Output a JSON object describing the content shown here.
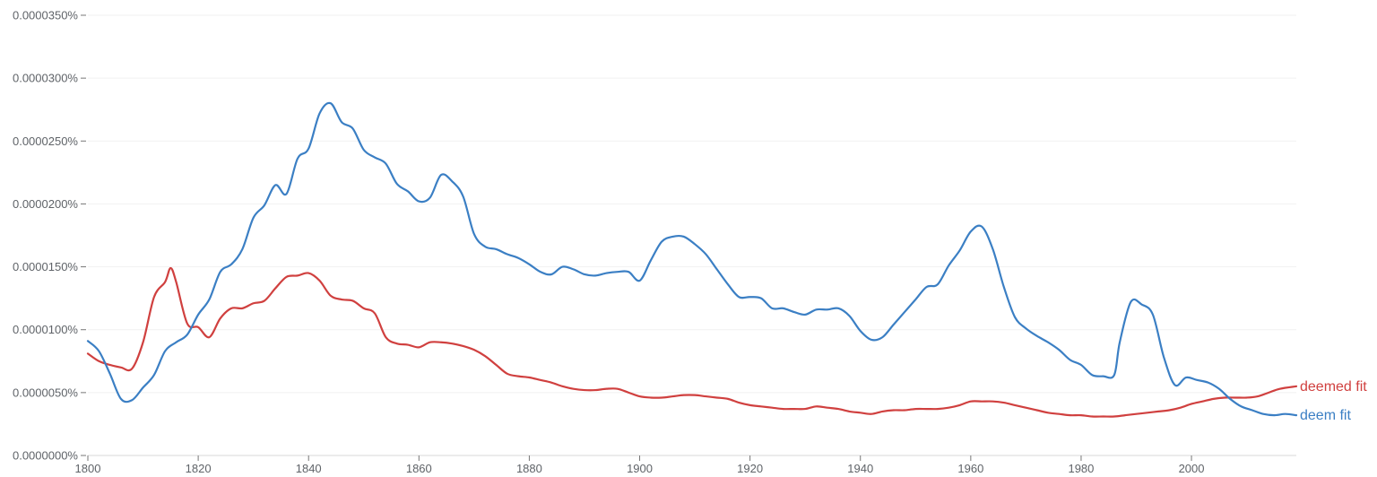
{
  "chart_data": {
    "type": "line",
    "title": "",
    "xlabel": "",
    "ylabel": "",
    "xlim": [
      1800,
      2019
    ],
    "ylim": [
      0,
      3.5e-05
    ],
    "grid": true,
    "legend": "inline-right",
    "x_ticks": [
      {
        "value": 1800,
        "label": "1800"
      },
      {
        "value": 1820,
        "label": "1820"
      },
      {
        "value": 1840,
        "label": "1840"
      },
      {
        "value": 1860,
        "label": "1860"
      },
      {
        "value": 1880,
        "label": "1880"
      },
      {
        "value": 1900,
        "label": "1900"
      },
      {
        "value": 1920,
        "label": "1920"
      },
      {
        "value": 1940,
        "label": "1940"
      },
      {
        "value": 1960,
        "label": "1960"
      },
      {
        "value": 1980,
        "label": "1980"
      },
      {
        "value": 2000,
        "label": "2000"
      }
    ],
    "y_ticks": [
      {
        "value": 0,
        "label": "0.0000000%"
      },
      {
        "value": 5e-06,
        "label": "0.0000050%"
      },
      {
        "value": 1e-05,
        "label": "0.0000100%"
      },
      {
        "value": 1.5e-05,
        "label": "0.0000150%"
      },
      {
        "value": 2e-05,
        "label": "0.0000200%"
      },
      {
        "value": 2.5e-05,
        "label": "0.0000250%"
      },
      {
        "value": 3e-05,
        "label": "0.0000300%"
      },
      {
        "value": 3.5e-05,
        "label": "0.0000350%"
      }
    ],
    "series": [
      {
        "name": "deemed fit",
        "color": "#d0403f",
        "points": [
          [
            1800,
            8.1e-06
          ],
          [
            1802,
            7.5e-06
          ],
          [
            1804,
            7.2e-06
          ],
          [
            1806,
            7e-06
          ],
          [
            1808,
            6.9e-06
          ],
          [
            1810,
            9e-06
          ],
          [
            1812,
            1.26e-05
          ],
          [
            1814,
            1.38e-05
          ],
          [
            1815,
            1.49e-05
          ],
          [
            1816,
            1.38e-05
          ],
          [
            1818,
            1.05e-05
          ],
          [
            1820,
            1.02e-05
          ],
          [
            1822,
            9.4e-06
          ],
          [
            1824,
            1.09e-05
          ],
          [
            1826,
            1.17e-05
          ],
          [
            1828,
            1.17e-05
          ],
          [
            1830,
            1.21e-05
          ],
          [
            1832,
            1.23e-05
          ],
          [
            1834,
            1.33e-05
          ],
          [
            1836,
            1.42e-05
          ],
          [
            1838,
            1.43e-05
          ],
          [
            1840,
            1.45e-05
          ],
          [
            1842,
            1.39e-05
          ],
          [
            1844,
            1.27e-05
          ],
          [
            1846,
            1.24e-05
          ],
          [
            1848,
            1.23e-05
          ],
          [
            1850,
            1.17e-05
          ],
          [
            1852,
            1.13e-05
          ],
          [
            1854,
            9.4e-06
          ],
          [
            1856,
            8.9e-06
          ],
          [
            1858,
            8.8e-06
          ],
          [
            1860,
            8.6e-06
          ],
          [
            1862,
            9e-06
          ],
          [
            1864,
            9e-06
          ],
          [
            1866,
            8.9e-06
          ],
          [
            1868,
            8.7e-06
          ],
          [
            1870,
            8.4e-06
          ],
          [
            1872,
            7.9e-06
          ],
          [
            1874,
            7.2e-06
          ],
          [
            1876,
            6.5e-06
          ],
          [
            1878,
            6.3e-06
          ],
          [
            1880,
            6.2e-06
          ],
          [
            1882,
            6e-06
          ],
          [
            1884,
            5.8e-06
          ],
          [
            1886,
            5.5e-06
          ],
          [
            1888,
            5.3e-06
          ],
          [
            1890,
            5.2e-06
          ],
          [
            1892,
            5.2e-06
          ],
          [
            1894,
            5.3e-06
          ],
          [
            1896,
            5.3e-06
          ],
          [
            1898,
            5e-06
          ],
          [
            1900,
            4.7e-06
          ],
          [
            1902,
            4.6e-06
          ],
          [
            1904,
            4.6e-06
          ],
          [
            1906,
            4.7e-06
          ],
          [
            1908,
            4.8e-06
          ],
          [
            1910,
            4.8e-06
          ],
          [
            1912,
            4.7e-06
          ],
          [
            1914,
            4.6e-06
          ],
          [
            1916,
            4.5e-06
          ],
          [
            1918,
            4.2e-06
          ],
          [
            1920,
            4e-06
          ],
          [
            1922,
            3.9e-06
          ],
          [
            1924,
            3.8e-06
          ],
          [
            1926,
            3.7e-06
          ],
          [
            1928,
            3.7e-06
          ],
          [
            1930,
            3.7e-06
          ],
          [
            1932,
            3.9e-06
          ],
          [
            1934,
            3.8e-06
          ],
          [
            1936,
            3.7e-06
          ],
          [
            1938,
            3.5e-06
          ],
          [
            1940,
            3.4e-06
          ],
          [
            1942,
            3.3e-06
          ],
          [
            1944,
            3.5e-06
          ],
          [
            1946,
            3.6e-06
          ],
          [
            1948,
            3.6e-06
          ],
          [
            1950,
            3.7e-06
          ],
          [
            1952,
            3.7e-06
          ],
          [
            1954,
            3.7e-06
          ],
          [
            1956,
            3.8e-06
          ],
          [
            1958,
            4e-06
          ],
          [
            1960,
            4.3e-06
          ],
          [
            1962,
            4.3e-06
          ],
          [
            1964,
            4.3e-06
          ],
          [
            1966,
            4.2e-06
          ],
          [
            1968,
            4e-06
          ],
          [
            1970,
            3.8e-06
          ],
          [
            1972,
            3.6e-06
          ],
          [
            1974,
            3.4e-06
          ],
          [
            1976,
            3.3e-06
          ],
          [
            1978,
            3.2e-06
          ],
          [
            1980,
            3.2e-06
          ],
          [
            1982,
            3.1e-06
          ],
          [
            1984,
            3.1e-06
          ],
          [
            1986,
            3.1e-06
          ],
          [
            1988,
            3.2e-06
          ],
          [
            1990,
            3.3e-06
          ],
          [
            1992,
            3.4e-06
          ],
          [
            1994,
            3.5e-06
          ],
          [
            1996,
            3.6e-06
          ],
          [
            1998,
            3.8e-06
          ],
          [
            2000,
            4.1e-06
          ],
          [
            2002,
            4.3e-06
          ],
          [
            2004,
            4.5e-06
          ],
          [
            2006,
            4.6e-06
          ],
          [
            2008,
            4.6e-06
          ],
          [
            2010,
            4.6e-06
          ],
          [
            2012,
            4.7e-06
          ],
          [
            2014,
            5e-06
          ],
          [
            2016,
            5.3e-06
          ],
          [
            2019,
            5.5e-06
          ]
        ]
      },
      {
        "name": "deem fit",
        "color": "#3b7fc4",
        "points": [
          [
            1800,
            9.1e-06
          ],
          [
            1802,
            8.3e-06
          ],
          [
            1804,
            6.5e-06
          ],
          [
            1806,
            4.5e-06
          ],
          [
            1808,
            4.4e-06
          ],
          [
            1810,
            5.4e-06
          ],
          [
            1812,
            6.4e-06
          ],
          [
            1814,
            8.3e-06
          ],
          [
            1816,
            9e-06
          ],
          [
            1818,
            9.6e-06
          ],
          [
            1820,
            1.12e-05
          ],
          [
            1822,
            1.24e-05
          ],
          [
            1824,
            1.46e-05
          ],
          [
            1826,
            1.52e-05
          ],
          [
            1828,
            1.64e-05
          ],
          [
            1830,
            1.89e-05
          ],
          [
            1832,
            1.99e-05
          ],
          [
            1834,
            2.15e-05
          ],
          [
            1836,
            2.08e-05
          ],
          [
            1838,
            2.36e-05
          ],
          [
            1840,
            2.44e-05
          ],
          [
            1842,
            2.72e-05
          ],
          [
            1844,
            2.8e-05
          ],
          [
            1846,
            2.65e-05
          ],
          [
            1848,
            2.6e-05
          ],
          [
            1850,
            2.43e-05
          ],
          [
            1852,
            2.37e-05
          ],
          [
            1854,
            2.32e-05
          ],
          [
            1856,
            2.16e-05
          ],
          [
            1858,
            2.1e-05
          ],
          [
            1860,
            2.02e-05
          ],
          [
            1862,
            2.05e-05
          ],
          [
            1864,
            2.23e-05
          ],
          [
            1866,
            2.18e-05
          ],
          [
            1868,
            2.06e-05
          ],
          [
            1870,
            1.76e-05
          ],
          [
            1872,
            1.66e-05
          ],
          [
            1874,
            1.64e-05
          ],
          [
            1876,
            1.6e-05
          ],
          [
            1878,
            1.57e-05
          ],
          [
            1880,
            1.52e-05
          ],
          [
            1882,
            1.46e-05
          ],
          [
            1884,
            1.44e-05
          ],
          [
            1886,
            1.5e-05
          ],
          [
            1888,
            1.48e-05
          ],
          [
            1890,
            1.44e-05
          ],
          [
            1892,
            1.43e-05
          ],
          [
            1894,
            1.45e-05
          ],
          [
            1896,
            1.46e-05
          ],
          [
            1898,
            1.46e-05
          ],
          [
            1900,
            1.39e-05
          ],
          [
            1902,
            1.55e-05
          ],
          [
            1904,
            1.7e-05
          ],
          [
            1906,
            1.74e-05
          ],
          [
            1908,
            1.74e-05
          ],
          [
            1910,
            1.68e-05
          ],
          [
            1912,
            1.6e-05
          ],
          [
            1914,
            1.48e-05
          ],
          [
            1916,
            1.36e-05
          ],
          [
            1918,
            1.26e-05
          ],
          [
            1920,
            1.26e-05
          ],
          [
            1922,
            1.25e-05
          ],
          [
            1924,
            1.17e-05
          ],
          [
            1926,
            1.17e-05
          ],
          [
            1928,
            1.14e-05
          ],
          [
            1930,
            1.12e-05
          ],
          [
            1932,
            1.16e-05
          ],
          [
            1934,
            1.16e-05
          ],
          [
            1936,
            1.17e-05
          ],
          [
            1938,
            1.11e-05
          ],
          [
            1940,
            9.9e-06
          ],
          [
            1942,
            9.2e-06
          ],
          [
            1944,
            9.4e-06
          ],
          [
            1946,
            1.04e-05
          ],
          [
            1948,
            1.14e-05
          ],
          [
            1950,
            1.24e-05
          ],
          [
            1952,
            1.34e-05
          ],
          [
            1954,
            1.36e-05
          ],
          [
            1956,
            1.51e-05
          ],
          [
            1958,
            1.63e-05
          ],
          [
            1960,
            1.78e-05
          ],
          [
            1962,
            1.82e-05
          ],
          [
            1964,
            1.64e-05
          ],
          [
            1966,
            1.34e-05
          ],
          [
            1968,
            1.1e-05
          ],
          [
            1970,
            1.01e-05
          ],
          [
            1972,
            9.5e-06
          ],
          [
            1974,
            9e-06
          ],
          [
            1976,
            8.4e-06
          ],
          [
            1978,
            7.6e-06
          ],
          [
            1980,
            7.2e-06
          ],
          [
            1982,
            6.4e-06
          ],
          [
            1984,
            6.3e-06
          ],
          [
            1986,
            6.4e-06
          ],
          [
            1987,
            9e-06
          ],
          [
            1989,
            1.22e-05
          ],
          [
            1991,
            1.2e-05
          ],
          [
            1993,
            1.12e-05
          ],
          [
            1995,
            7.8e-06
          ],
          [
            1997,
            5.6e-06
          ],
          [
            1999,
            6.2e-06
          ],
          [
            2001,
            6e-06
          ],
          [
            2003,
            5.8e-06
          ],
          [
            2005,
            5.3e-06
          ],
          [
            2007,
            4.5e-06
          ],
          [
            2009,
            3.9e-06
          ],
          [
            2011,
            3.6e-06
          ],
          [
            2013,
            3.3e-06
          ],
          [
            2015,
            3.2e-06
          ],
          [
            2017,
            3.3e-06
          ],
          [
            2019,
            3.2e-06
          ]
        ]
      }
    ]
  }
}
